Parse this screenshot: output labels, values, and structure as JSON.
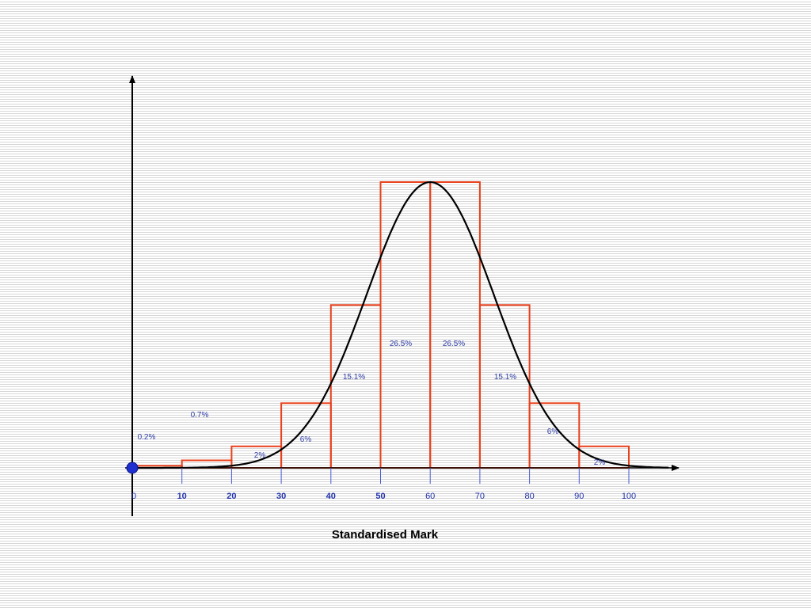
{
  "chart_data": {
    "type": "bar",
    "xlabel": "Standardised Mark",
    "x_ticks": [
      "0",
      "10",
      "20",
      "30",
      "40",
      "50",
      "60",
      "70",
      "80",
      "90",
      "100"
    ],
    "bold_ticks": [
      "10",
      "20",
      "30",
      "40",
      "50"
    ],
    "bins": [
      {
        "start": 0,
        "end": 10,
        "label": "0.2%",
        "value": 0.2
      },
      {
        "start": 10,
        "end": 20,
        "label": "0.7%",
        "value": 0.7
      },
      {
        "start": 20,
        "end": 30,
        "label": "2%",
        "value": 2
      },
      {
        "start": 30,
        "end": 40,
        "label": "6%",
        "value": 6
      },
      {
        "start": 40,
        "end": 50,
        "label": "15.1%",
        "value": 15.1
      },
      {
        "start": 50,
        "end": 60,
        "label": "26.5%",
        "value": 26.5
      },
      {
        "start": 60,
        "end": 70,
        "label": "26.5%",
        "value": 26.5
      },
      {
        "start": 70,
        "end": 80,
        "label": "15.1%",
        "value": 15.1
      },
      {
        "start": 80,
        "end": 90,
        "label": "6%",
        "value": 6
      },
      {
        "start": 90,
        "end": 100,
        "label": "2%",
        "value": 2
      }
    ],
    "curve": {
      "type": "normal",
      "mean": 60,
      "peak": 26.5
    },
    "xlim": [
      0,
      108
    ],
    "ylim": [
      0,
      26.5
    ],
    "colors": {
      "bars": "#e8401c",
      "curve": "#000000",
      "axes": "#000000",
      "ticks": "#4a5bd6",
      "labels": "#2f3ea8",
      "origin_marker": "#1f2fd0"
    }
  }
}
